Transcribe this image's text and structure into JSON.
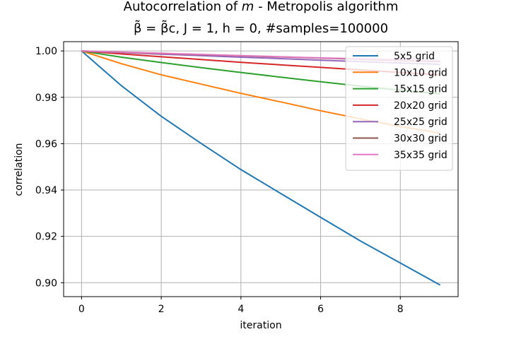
{
  "chart_data": {
    "type": "line",
    "title_line1": "Autocorrelation of m - Metropolis algorithm",
    "title_line2": "β̃ = β̃c, J = 1, h = 0, #samples=100000",
    "xlabel": "iteration",
    "ylabel": "correlation",
    "xlim": [
      -0.45,
      9.45
    ],
    "ylim": [
      0.894,
      1.004
    ],
    "xticks": [
      0,
      2,
      4,
      6,
      8
    ],
    "yticks": [
      0.9,
      0.92,
      0.94,
      0.96,
      0.98,
      1.0
    ],
    "ytick_labels": [
      "0.90",
      "0.92",
      "0.94",
      "0.96",
      "0.98",
      "1.00"
    ],
    "grid": true,
    "legend_position": "top-right",
    "x": [
      0,
      1,
      2,
      3,
      4,
      5,
      6,
      7,
      8,
      9
    ],
    "series": [
      {
        "name": "5x5 grid",
        "color": "#1f77b4",
        "values": [
          1.0,
          0.985,
          0.9718,
          0.9601,
          0.9488,
          0.9385,
          0.9282,
          0.918,
          0.9085,
          0.899
        ]
      },
      {
        "name": "10x10 grid",
        "color": "#ff7f0e",
        "values": [
          1.0,
          0.9945,
          0.9897,
          0.9857,
          0.9817,
          0.978,
          0.9742,
          0.9707,
          0.9674,
          0.9645
        ]
      },
      {
        "name": "15x15 grid",
        "color": "#2ca02c",
        "values": [
          1.0,
          0.9973,
          0.995,
          0.9928,
          0.9907,
          0.9887,
          0.9867,
          0.9848,
          0.9831,
          0.9815
        ]
      },
      {
        "name": "20x20 grid",
        "color": "#d62728",
        "values": [
          1.0,
          0.9987,
          0.9975,
          0.9963,
          0.9951,
          0.994,
          0.9929,
          0.9918,
          0.9907,
          0.9897
        ]
      },
      {
        "name": "25x25 grid",
        "color": "#9467bd",
        "values": [
          1.0,
          0.9993,
          0.9986,
          0.998,
          0.9973,
          0.9967,
          0.996,
          0.9954,
          0.9948,
          0.9942
        ]
      },
      {
        "name": "30x30 grid",
        "color": "#8c564b",
        "values": [
          1.0,
          0.9994,
          0.9989,
          0.9984,
          0.9979,
          0.9974,
          0.9969,
          0.9964,
          0.9959,
          0.9954
        ]
      },
      {
        "name": "35x35 grid",
        "color": "#e377c2",
        "values": [
          1.0,
          0.9995,
          0.999,
          0.9985,
          0.998,
          0.9975,
          0.997,
          0.9966,
          0.9961,
          0.9957
        ]
      }
    ]
  }
}
